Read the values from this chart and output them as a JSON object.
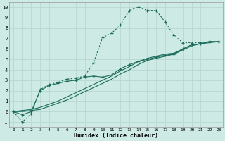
{
  "xlabel": "Humidex (Indice chaleur)",
  "background_color": "#ceeae4",
  "grid_color": "#b8d8d0",
  "line_color": "#1a6b5a",
  "xlim": [
    -0.5,
    23.5
  ],
  "ylim": [
    -1.5,
    10.5
  ],
  "xticks": [
    0,
    1,
    2,
    3,
    4,
    5,
    6,
    7,
    8,
    9,
    10,
    11,
    12,
    13,
    14,
    15,
    16,
    17,
    18,
    19,
    20,
    21,
    22,
    23
  ],
  "yticks": [
    -1,
    0,
    1,
    2,
    3,
    4,
    5,
    6,
    7,
    8,
    9,
    10
  ],
  "line1_x": [
    0,
    1,
    2,
    3,
    4,
    5,
    6,
    7,
    8,
    9,
    10,
    11,
    12,
    13,
    14,
    15,
    16,
    17,
    18,
    19,
    20,
    21,
    22,
    23
  ],
  "line1_y": [
    0,
    -1,
    -0.2,
    2.1,
    2.6,
    2.8,
    3.1,
    3.2,
    3.4,
    4.7,
    7.1,
    7.5,
    8.3,
    9.7,
    10.0,
    9.7,
    9.7,
    8.6,
    7.3,
    6.6,
    6.6,
    6.6,
    6.7,
    6.7
  ],
  "line2_x": [
    0,
    1,
    2,
    3,
    4,
    5,
    6,
    7,
    8,
    9,
    10,
    11,
    12,
    13,
    14,
    15,
    16,
    17,
    18,
    19,
    20,
    21,
    22,
    23
  ],
  "line2_y": [
    0,
    -0.3,
    0.0,
    2.0,
    2.5,
    2.7,
    2.9,
    3.0,
    3.3,
    3.4,
    3.3,
    3.5,
    4.1,
    4.5,
    4.8,
    5.0,
    5.2,
    5.4,
    5.5,
    6.0,
    6.4,
    6.5,
    6.7,
    6.7
  ],
  "line3_x": [
    0,
    1,
    2,
    3,
    4,
    5,
    6,
    7,
    8,
    9,
    10,
    11,
    12,
    13,
    14,
    15,
    16,
    17,
    18,
    19,
    20,
    21,
    22,
    23
  ],
  "line3_y": [
    0,
    0.0,
    0.1,
    0.2,
    0.5,
    0.8,
    1.1,
    1.5,
    1.9,
    2.3,
    2.7,
    3.1,
    3.6,
    4.0,
    4.5,
    4.9,
    5.1,
    5.3,
    5.5,
    5.9,
    6.3,
    6.5,
    6.6,
    6.7
  ],
  "line4_x": [
    0,
    1,
    2,
    3,
    4,
    5,
    6,
    7,
    8,
    9,
    10,
    11,
    12,
    13,
    14,
    15,
    16,
    17,
    18,
    19,
    20,
    21,
    22,
    23
  ],
  "line4_y": [
    0,
    0.1,
    0.2,
    0.4,
    0.7,
    1.0,
    1.4,
    1.8,
    2.2,
    2.6,
    3.0,
    3.4,
    3.9,
    4.3,
    4.8,
    5.1,
    5.3,
    5.5,
    5.6,
    6.0,
    6.4,
    6.5,
    6.7,
    6.7
  ]
}
